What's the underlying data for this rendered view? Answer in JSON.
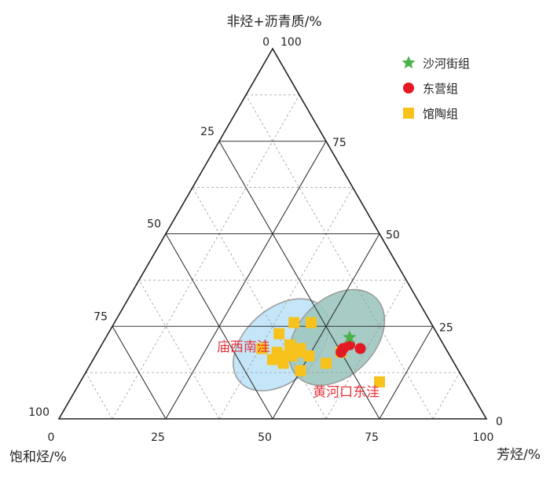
{
  "chart_data": {
    "type": "scatter",
    "subtype": "ternary",
    "axes": {
      "top": {
        "label": "非烃+沥青质/%"
      },
      "bottom_left": {
        "label": "饱和烃/%"
      },
      "bottom_right": {
        "label": "芳烃/%"
      }
    },
    "range": [
      0,
      100
    ],
    "major_ticks": [
      "0",
      "25",
      "50",
      "75",
      "100"
    ],
    "left_edge_ticks": [
      "100",
      "25",
      "50",
      "75",
      "100"
    ],
    "bottom_edge_ticks": [
      "0",
      "25",
      "50",
      "75",
      "100"
    ],
    "right_edge_ticks": [
      "75",
      "50",
      "25",
      "0"
    ],
    "grid": {
      "major": true,
      "minor_dashed": true
    },
    "legend": {
      "position": "top-right",
      "entries": [
        {
          "name": "沙河街组",
          "marker": "star",
          "color": "#4bb14b"
        },
        {
          "name": "东营组",
          "marker": "circle",
          "color": "#e31a23"
        },
        {
          "name": "馆陶组",
          "marker": "square",
          "color": "#f7c21b"
        }
      ]
    },
    "regions": [
      {
        "name": "庙西南洼",
        "fill": "#bfe3f8",
        "stroke": "#999999",
        "label_color": "#e8333c",
        "center": {
          "saturates": 38,
          "aromatics": 42,
          "resins_asphaltenes": 20
        },
        "rx": 13,
        "ry": 8.5,
        "tilt_deg": -42
      },
      {
        "name": "黄河口东洼",
        "fill": "#9dc7bf",
        "stroke": "#999999",
        "label_color": "#e8333c",
        "center": {
          "saturates": 24,
          "aromatics": 54,
          "resins_asphaltenes": 22
        },
        "rx": 13,
        "ry": 9,
        "tilt_deg": -45
      }
    ],
    "series": [
      {
        "name": "沙河街组",
        "marker": "star",
        "color": "#4bb14b",
        "points": [
          {
            "saturates": 21,
            "aromatics": 57,
            "resins_asphaltenes": 22
          }
        ]
      },
      {
        "name": "东营组",
        "marker": "circle",
        "color": "#e31a23",
        "points": [
          {
            "saturates": 24,
            "aromatics": 57,
            "resins_asphaltenes": 19
          },
          {
            "saturates": 25,
            "aromatics": 57,
            "resins_asphaltenes": 18
          },
          {
            "saturates": 20,
            "aromatics": 61,
            "resins_asphaltenes": 19
          },
          {
            "saturates": 22,
            "aromatics": 58,
            "resins_asphaltenes": 20
          }
        ]
      },
      {
        "name": "馆陶组",
        "marker": "square",
        "color": "#f7c21b",
        "points": [
          {
            "saturates": 37,
            "aromatics": 40,
            "resins_asphaltenes": 23
          },
          {
            "saturates": 32,
            "aromatics": 42,
            "resins_asphaltenes": 26
          },
          {
            "saturates": 28,
            "aromatics": 46,
            "resins_asphaltenes": 26
          },
          {
            "saturates": 36,
            "aromatics": 44,
            "resins_asphaltenes": 20
          },
          {
            "saturates": 40,
            "aromatics": 42,
            "resins_asphaltenes": 18
          },
          {
            "saturates": 39,
            "aromatics": 44,
            "resins_asphaltenes": 17
          },
          {
            "saturates": 37,
            "aromatics": 46,
            "resins_asphaltenes": 17
          },
          {
            "saturates": 38,
            "aromatics": 45,
            "resins_asphaltenes": 17
          },
          {
            "saturates": 35,
            "aromatics": 47,
            "resins_asphaltenes": 18
          },
          {
            "saturates": 34,
            "aromatics": 47,
            "resins_asphaltenes": 19
          },
          {
            "saturates": 43,
            "aromatics": 38,
            "resins_asphaltenes": 19
          },
          {
            "saturates": 42,
            "aromatics": 42,
            "resins_asphaltenes": 16
          },
          {
            "saturates": 40,
            "aromatics": 45,
            "resins_asphaltenes": 15
          },
          {
            "saturates": 33,
            "aromatics": 50,
            "resins_asphaltenes": 17
          },
          {
            "saturates": 30,
            "aromatics": 55,
            "resins_asphaltenes": 15
          },
          {
            "saturates": 25,
            "aromatics": 57,
            "resins_asphaltenes": 18
          },
          {
            "saturates": 37,
            "aromatics": 50,
            "resins_asphaltenes": 13
          },
          {
            "saturates": 20,
            "aromatics": 70,
            "resins_asphaltenes": 10
          }
        ]
      }
    ]
  }
}
